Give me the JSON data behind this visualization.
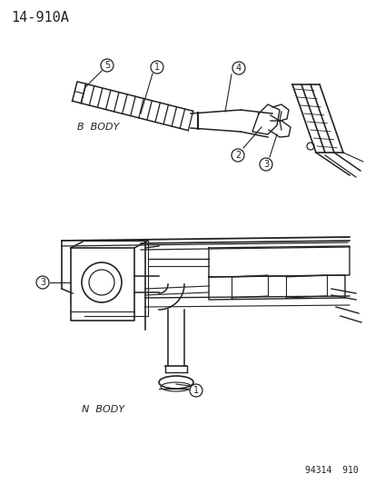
{
  "title": "14-910A",
  "bg_color": "#ffffff",
  "line_color": "#222222",
  "text_color": "#222222",
  "b_body_label": "B  BODY",
  "n_body_label": "N  BODY",
  "footer_text": "94314  910",
  "title_fontsize": 11,
  "label_fontsize": 8,
  "callout_fontsize": 7,
  "footer_fontsize": 7
}
